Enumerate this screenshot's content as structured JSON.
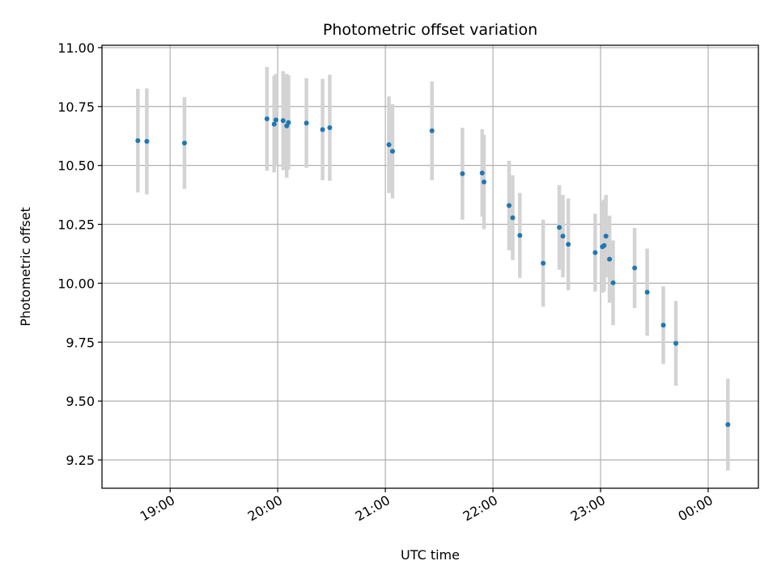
{
  "chart_data": {
    "type": "scatter",
    "title": "Photometric offset variation",
    "xlabel": "UTC time",
    "ylabel": "Photometric offset",
    "x_axis": {
      "kind": "time",
      "range": [
        "18:22",
        "00:28"
      ],
      "ticks": [
        {
          "value": "19:00",
          "label": "19:00"
        },
        {
          "value": "20:00",
          "label": "20:00"
        },
        {
          "value": "21:00",
          "label": "21:00"
        },
        {
          "value": "22:00",
          "label": "22:00"
        },
        {
          "value": "23:00",
          "label": "23:00"
        },
        {
          "value": "00:00",
          "label": "00:00"
        }
      ]
    },
    "y_axis": {
      "range": [
        9.13,
        11.01
      ],
      "ticks": [
        {
          "value": 9.25,
          "label": "9.25"
        },
        {
          "value": 9.5,
          "label": "9.50"
        },
        {
          "value": 9.75,
          "label": "9.75"
        },
        {
          "value": 10.0,
          "label": "10.00"
        },
        {
          "value": 10.25,
          "label": "10.25"
        },
        {
          "value": 10.5,
          "label": "10.50"
        },
        {
          "value": 10.75,
          "label": "10.75"
        },
        {
          "value": 11.0,
          "label": "11.00"
        }
      ]
    },
    "grid": true,
    "colors": {
      "point": "#1f77b4",
      "errorbar": "#d3d3d3",
      "grid": "#b0b0b0"
    },
    "series": [
      {
        "points": [
          {
            "x": "18:42",
            "y": 10.605,
            "err": 0.22
          },
          {
            "x": "18:47",
            "y": 10.602,
            "err": 0.225
          },
          {
            "x": "19:08",
            "y": 10.595,
            "err": 0.195
          },
          {
            "x": "19:54",
            "y": 10.698,
            "err": 0.22
          },
          {
            "x": "19:58",
            "y": 10.675,
            "err": 0.205
          },
          {
            "x": "19:59",
            "y": 10.693,
            "err": 0.195
          },
          {
            "x": "20:03",
            "y": 10.69,
            "err": 0.21
          },
          {
            "x": "20:05",
            "y": 10.668,
            "err": 0.22
          },
          {
            "x": "20:06",
            "y": 10.682,
            "err": 0.2
          },
          {
            "x": "20:16",
            "y": 10.68,
            "err": 0.19
          },
          {
            "x": "20:25",
            "y": 10.652,
            "err": 0.215
          },
          {
            "x": "20:29",
            "y": 10.66,
            "err": 0.225
          },
          {
            "x": "21:02",
            "y": 10.588,
            "err": 0.205
          },
          {
            "x": "21:04",
            "y": 10.56,
            "err": 0.2
          },
          {
            "x": "21:26",
            "y": 10.647,
            "err": 0.21
          },
          {
            "x": "21:43",
            "y": 10.465,
            "err": 0.195
          },
          {
            "x": "21:54",
            "y": 10.468,
            "err": 0.185
          },
          {
            "x": "21:55",
            "y": 10.43,
            "err": 0.2
          },
          {
            "x": "22:09",
            "y": 10.33,
            "err": 0.19
          },
          {
            "x": "22:11",
            "y": 10.278,
            "err": 0.18
          },
          {
            "x": "22:15",
            "y": 10.203,
            "err": 0.18
          },
          {
            "x": "22:28",
            "y": 10.085,
            "err": 0.185
          },
          {
            "x": "22:37",
            "y": 10.237,
            "err": 0.18
          },
          {
            "x": "22:39",
            "y": 10.2,
            "err": 0.175
          },
          {
            "x": "22:42",
            "y": 10.165,
            "err": 0.195
          },
          {
            "x": "22:57",
            "y": 10.13,
            "err": 0.165
          },
          {
            "x": "23:01",
            "y": 10.155,
            "err": 0.195
          },
          {
            "x": "23:02",
            "y": 10.16,
            "err": 0.195
          },
          {
            "x": "23:03",
            "y": 10.2,
            "err": 0.175
          },
          {
            "x": "23:05",
            "y": 10.102,
            "err": 0.185
          },
          {
            "x": "23:07",
            "y": 10.002,
            "err": 0.18
          },
          {
            "x": "23:19",
            "y": 10.065,
            "err": 0.17
          },
          {
            "x": "23:26",
            "y": 9.962,
            "err": 0.185
          },
          {
            "x": "23:35",
            "y": 9.822,
            "err": 0.165
          },
          {
            "x": "23:42",
            "y": 9.745,
            "err": 0.18
          },
          {
            "x": "00:11",
            "y": 9.4,
            "err": 0.195
          }
        ]
      }
    ]
  }
}
